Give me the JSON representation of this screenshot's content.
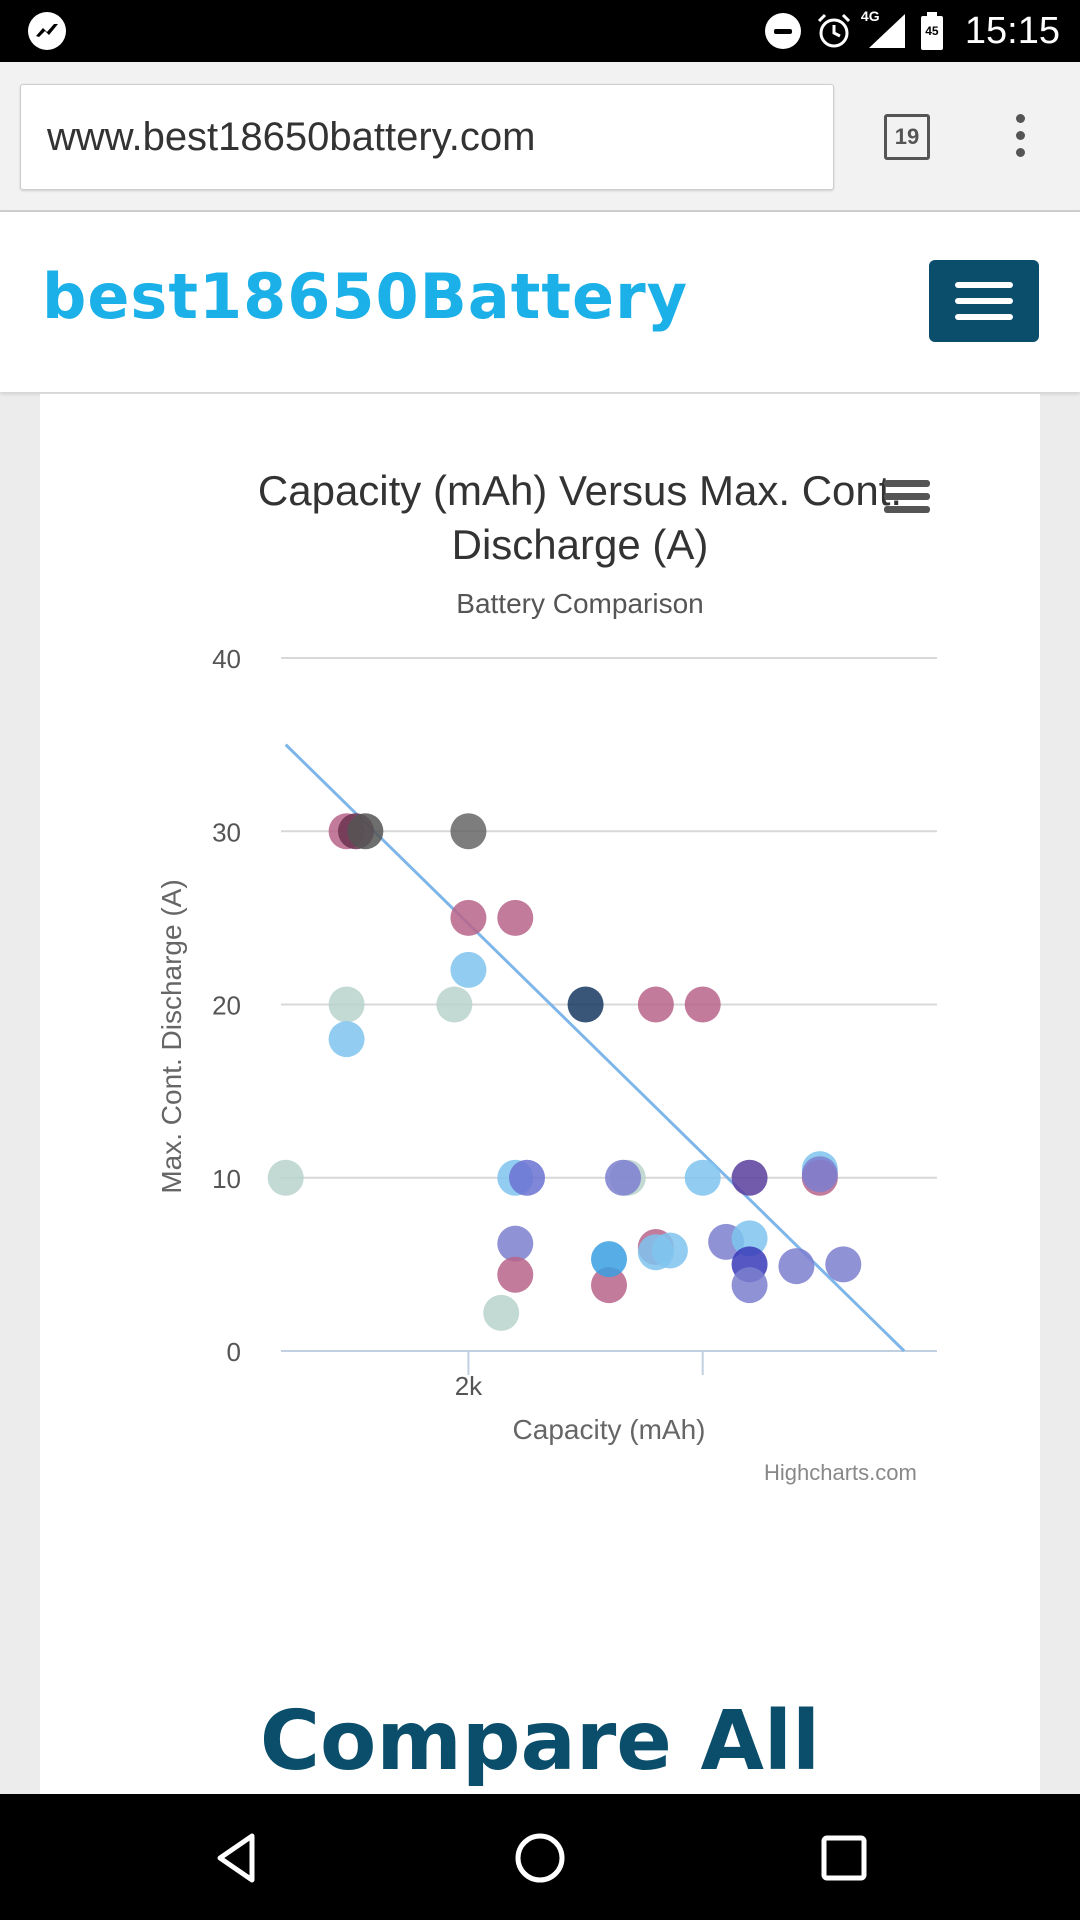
{
  "status_bar": {
    "time": "15:15",
    "network": "4G",
    "battery_level": "45",
    "icons": [
      "messenger-icon",
      "do-not-disturb-icon",
      "alarm-icon",
      "signal-icon",
      "battery-icon"
    ]
  },
  "browser": {
    "url": "www.best18650battery.com",
    "tab_count": "19",
    "icons": [
      "tabs-icon",
      "overflow-menu-icon"
    ]
  },
  "site": {
    "logo": "best18650Battery",
    "menu_icon": "hamburger-menu-icon",
    "colors": {
      "logo": "#1bb0e8",
      "header_button": "#0b4e6b"
    }
  },
  "chart": {
    "title": "Capacity (mAh) Versus Max. Cont. Discharge (A)",
    "subtitle": "Battery Comparison",
    "credits": "Highcharts.com",
    "menu_icon": "chart-context-menu-icon"
  },
  "chart_data": {
    "type": "scatter",
    "title": "Capacity (mAh) Versus Max. Cont. Discharge (A)",
    "subtitle": "Battery Comparison",
    "xlabel": "Capacity (mAh)",
    "ylabel": "Max. Cont. Discharge (A)",
    "xlim": [
      1600,
      3000
    ],
    "ylim": [
      0,
      40
    ],
    "x_ticks": [
      2000,
      2500
    ],
    "x_tick_labels": [
      "2k",
      ""
    ],
    "y_ticks": [
      0,
      10,
      20,
      30,
      40
    ],
    "grid": true,
    "legend": "none",
    "trendline": {
      "x": [
        1610,
        2930
      ],
      "y": [
        35,
        0
      ],
      "color": "#7eb6ea"
    },
    "points": [
      {
        "x": 1610,
        "y": 10,
        "color": "#b8d4cc"
      },
      {
        "x": 1740,
        "y": 20,
        "color": "#b8d4cc"
      },
      {
        "x": 1740,
        "y": 18,
        "color": "#7fc4ee"
      },
      {
        "x": 1740,
        "y": 30,
        "color": "#b9648a"
      },
      {
        "x": 1760,
        "y": 30,
        "color": "#6b3350"
      },
      {
        "x": 1780,
        "y": 30,
        "color": "#555555"
      },
      {
        "x": 1970,
        "y": 20,
        "color": "#b8d4cc"
      },
      {
        "x": 2000,
        "y": 30,
        "color": "#666666"
      },
      {
        "x": 2000,
        "y": 25,
        "color": "#b9648a"
      },
      {
        "x": 2000,
        "y": 22,
        "color": "#7fc4ee"
      },
      {
        "x": 2070,
        "y": 2.2,
        "color": "#b8d4cc"
      },
      {
        "x": 2100,
        "y": 25,
        "color": "#b9648a"
      },
      {
        "x": 2100,
        "y": 10,
        "color": "#7fc4ee"
      },
      {
        "x": 2100,
        "y": 6.2,
        "color": "#7c7fcf"
      },
      {
        "x": 2100,
        "y": 4.4,
        "color": "#b9648a"
      },
      {
        "x": 2125,
        "y": 10,
        "color": "#6b72d1"
      },
      {
        "x": 2250,
        "y": 20,
        "color": "#16375f"
      },
      {
        "x": 2300,
        "y": 3.8,
        "color": "#b9648a"
      },
      {
        "x": 2300,
        "y": 5.3,
        "color": "#3a9fe0"
      },
      {
        "x": 2340,
        "y": 10,
        "color": "#b8d4cc"
      },
      {
        "x": 2330,
        "y": 10,
        "color": "#7c7fcf"
      },
      {
        "x": 2400,
        "y": 20,
        "color": "#b9648a"
      },
      {
        "x": 2400,
        "y": 6.0,
        "color": "#b9648a"
      },
      {
        "x": 2400,
        "y": 5.7,
        "color": "#7fc4ee"
      },
      {
        "x": 2430,
        "y": 5.8,
        "color": "#7fc4ee"
      },
      {
        "x": 2500,
        "y": 20,
        "color": "#b9648a"
      },
      {
        "x": 2500,
        "y": 10,
        "color": "#7fc4ee"
      },
      {
        "x": 2550,
        "y": 6.3,
        "color": "#7c7fcf"
      },
      {
        "x": 2600,
        "y": 10,
        "color": "#5a3e9e"
      },
      {
        "x": 2600,
        "y": 6.5,
        "color": "#7fc4ee"
      },
      {
        "x": 2600,
        "y": 5.0,
        "color": "#3a3ab8"
      },
      {
        "x": 2600,
        "y": 3.8,
        "color": "#7c7fcf"
      },
      {
        "x": 2700,
        "y": 4.9,
        "color": "#7c7fcf"
      },
      {
        "x": 2750,
        "y": 10.5,
        "color": "#7fc4ee"
      },
      {
        "x": 2750,
        "y": 10,
        "color": "#b9648a"
      },
      {
        "x": 2750,
        "y": 10.2,
        "color": "#7c7fcf"
      },
      {
        "x": 2800,
        "y": 5.0,
        "color": "#7c7fcf"
      }
    ]
  },
  "page": {
    "heading": "Compare All"
  },
  "nav_bar": {
    "icons": [
      "back-icon",
      "home-icon",
      "recents-icon"
    ]
  }
}
